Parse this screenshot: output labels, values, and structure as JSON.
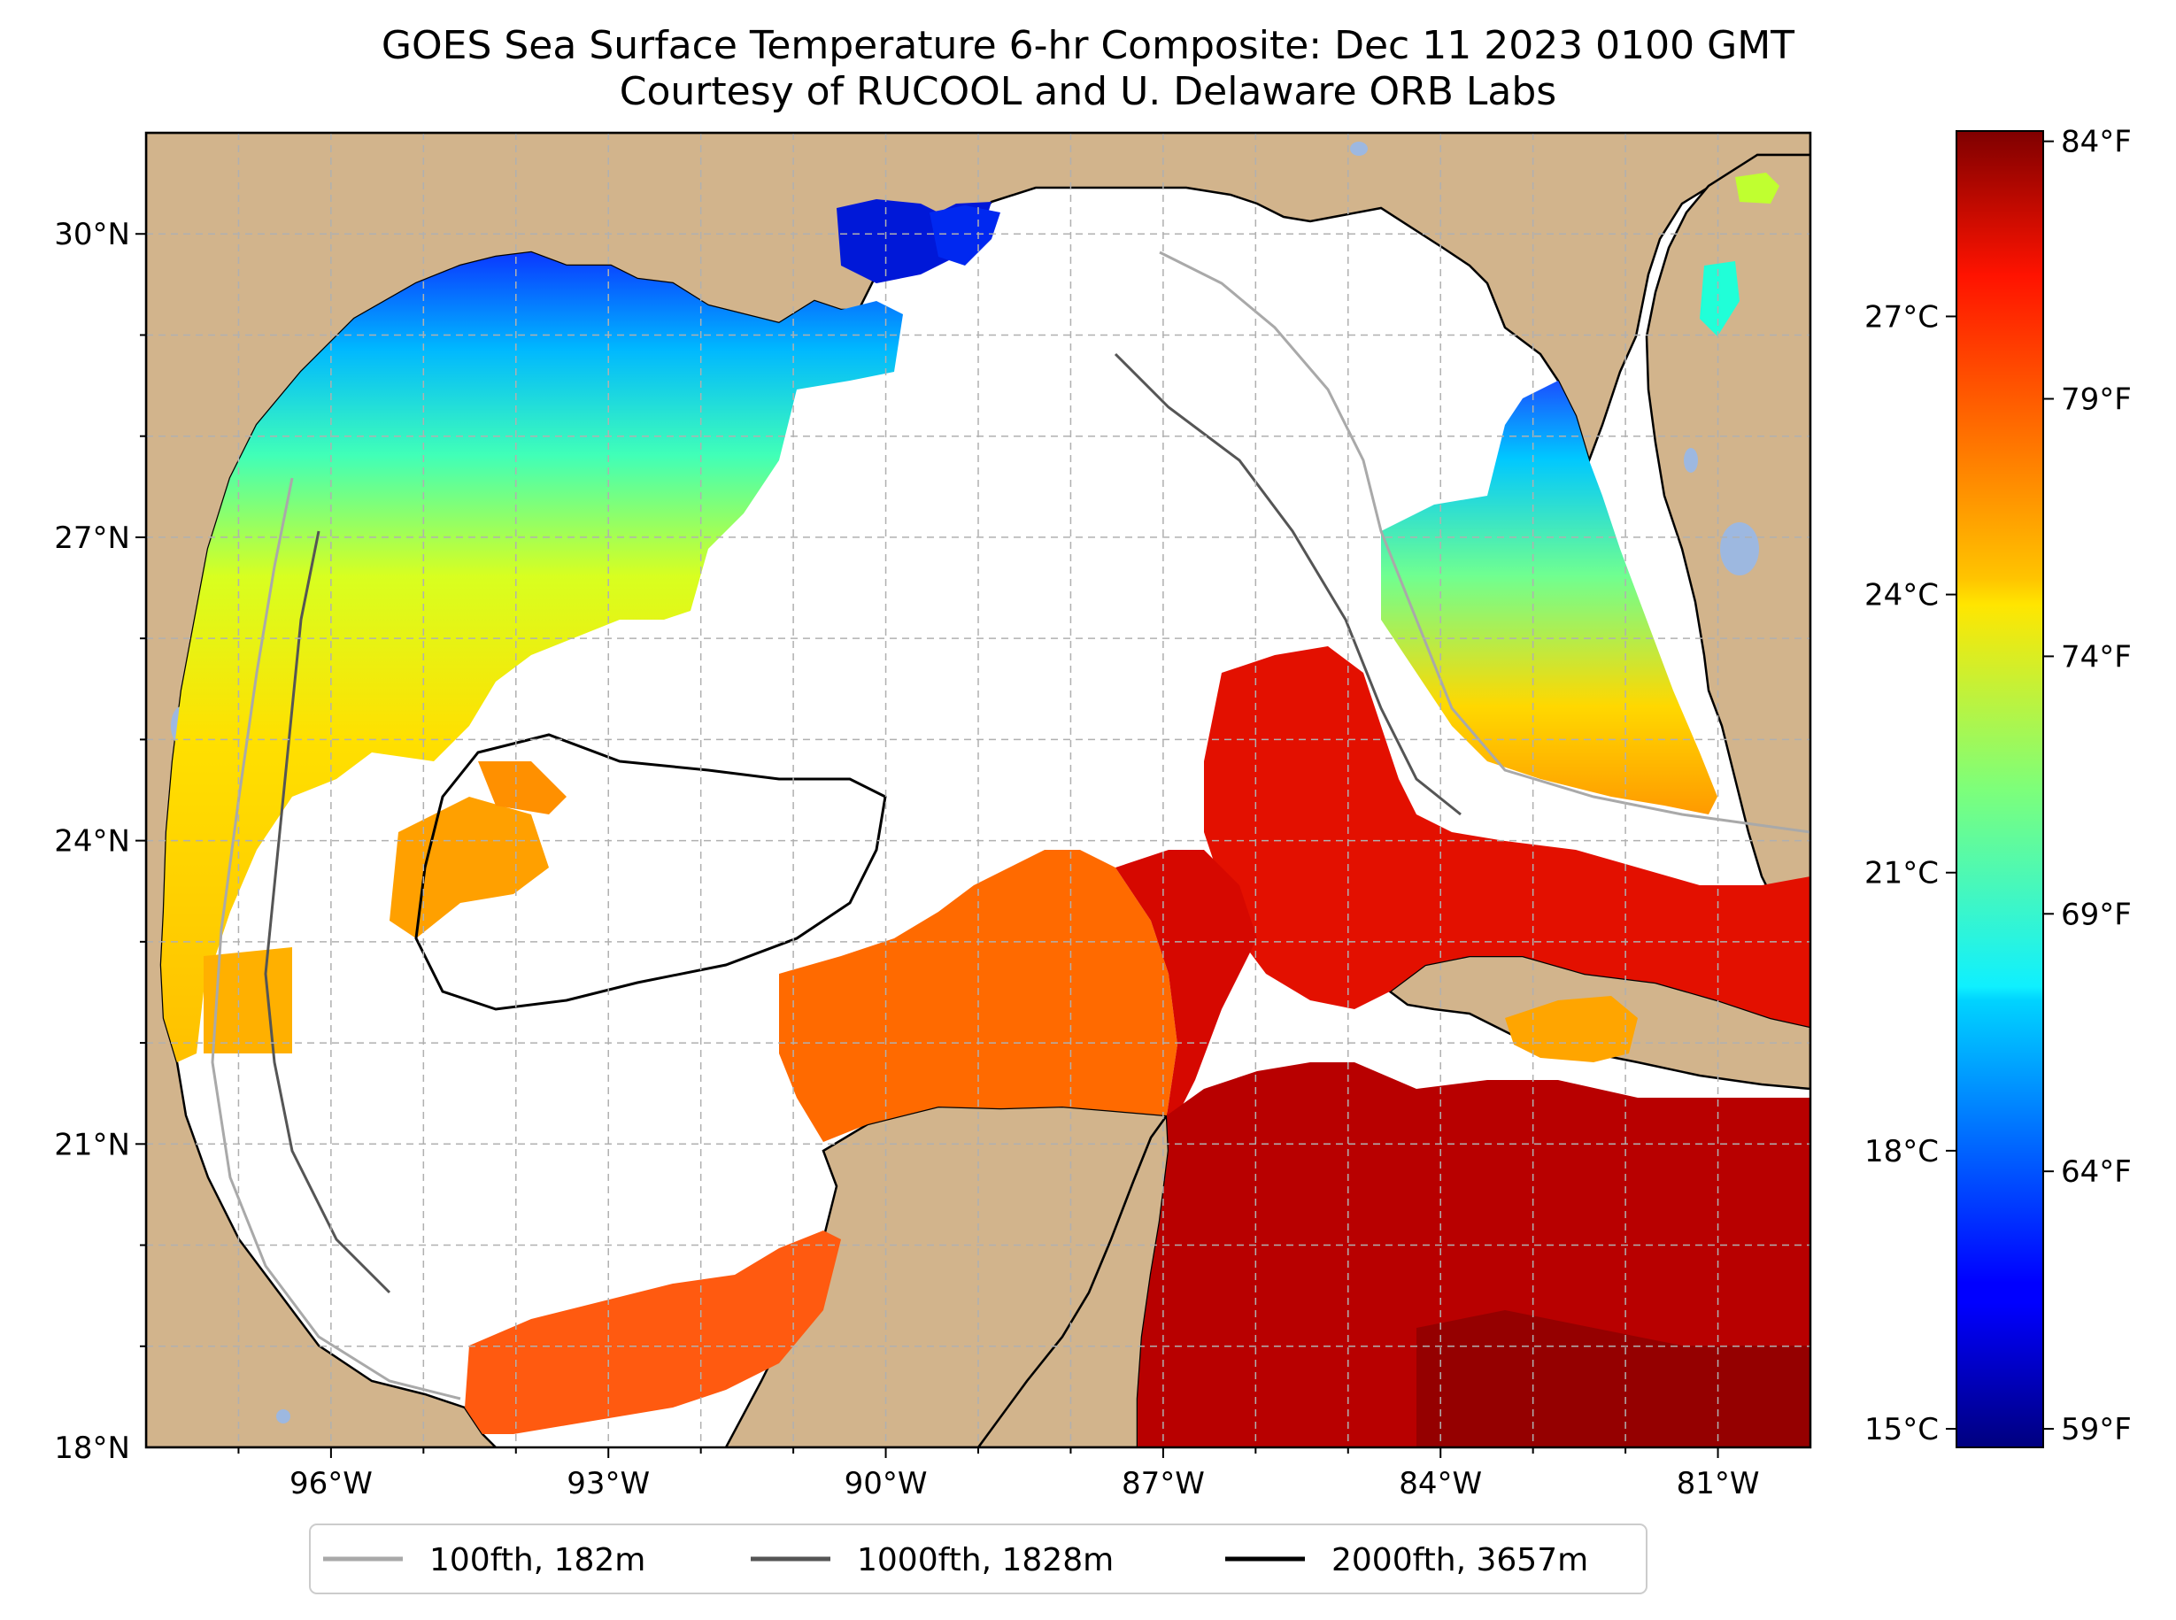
{
  "title": {
    "line1": "GOES Sea Surface Temperature 6-hr Composite: Dec 11 2023 0100 GMT",
    "line2": "Courtesy of RUCOOL and U. Delaware ORB Labs"
  },
  "map": {
    "lon_range": [
      -98,
      -80
    ],
    "lat_range": [
      18,
      31
    ],
    "lat_ticks": [
      {
        "value": 30,
        "label": "30°N"
      },
      {
        "value": 27,
        "label": "27°N"
      },
      {
        "value": 24,
        "label": "24°N"
      },
      {
        "value": 21,
        "label": "21°N"
      },
      {
        "value": 18,
        "label": "18°N"
      }
    ],
    "lon_ticks": [
      {
        "value": -96,
        "label": "96°W"
      },
      {
        "value": -93,
        "label": "93°W"
      },
      {
        "value": -90,
        "label": "90°W"
      },
      {
        "value": -87,
        "label": "87°W"
      },
      {
        "value": -84,
        "label": "84°W"
      },
      {
        "value": -81,
        "label": "81°W"
      }
    ],
    "colors": {
      "land": "#d2b48c",
      "ocean_nodata": "#ffffff",
      "lakes": "#9db8e0",
      "grid": "#b0b0b0"
    }
  },
  "colorbar": {
    "colormap": "jet",
    "celsius_ticks": [
      {
        "value": 15,
        "label": "15°C"
      },
      {
        "value": 18,
        "label": "18°C"
      },
      {
        "value": 21,
        "label": "21°C"
      },
      {
        "value": 24,
        "label": "24°C"
      },
      {
        "value": 27,
        "label": "27°C"
      }
    ],
    "fahrenheit_ticks": [
      {
        "value": 59,
        "label": "59°F"
      },
      {
        "value": 64,
        "label": "64°F"
      },
      {
        "value": 69,
        "label": "69°F"
      },
      {
        "value": 74,
        "label": "74°F"
      },
      {
        "value": 79,
        "label": "79°F"
      },
      {
        "value": 84,
        "label": "84°F"
      }
    ]
  },
  "legend": {
    "placement": "bottom-center",
    "items": [
      {
        "label": "100fth, 182m",
        "color": "#a9a9a9"
      },
      {
        "label": "1000fth, 1828m",
        "color": "#555555"
      },
      {
        "label": "2000fth, 3657m",
        "color": "#000000"
      }
    ]
  }
}
